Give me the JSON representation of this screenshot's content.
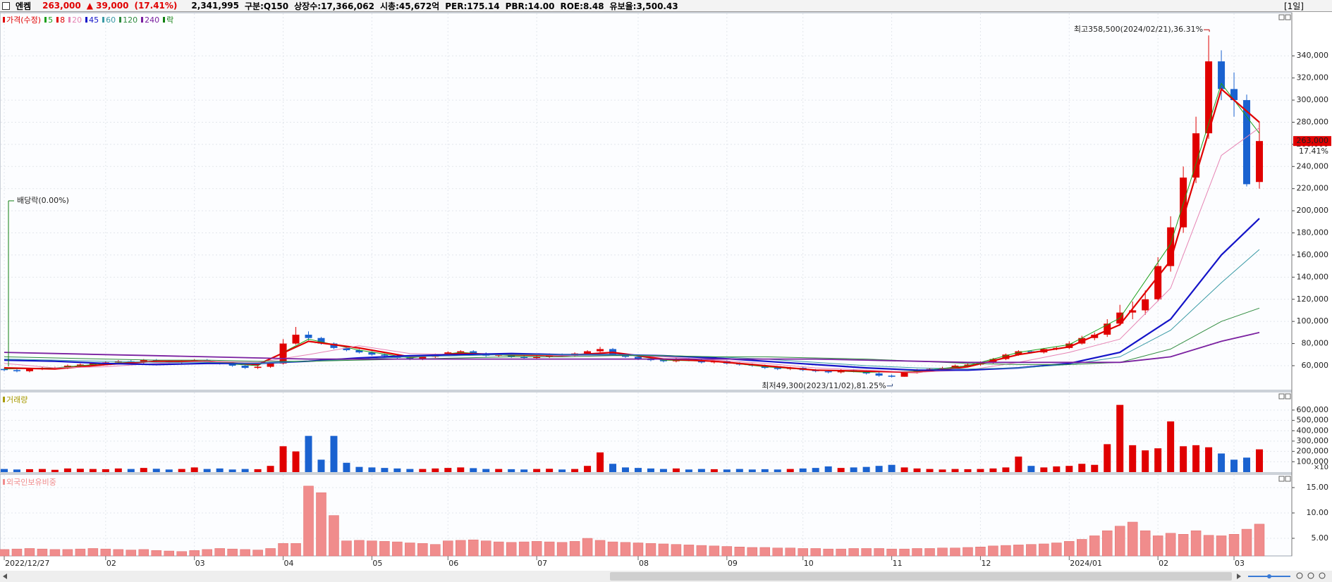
{
  "header": {
    "name": "엔켐",
    "price": "263,000",
    "change": "▲ 39,000",
    "change_rate": "(17.41%)",
    "volume": "2,341,995",
    "info": [
      "구분:Q150",
      "상장수:17,366,062",
      "시총:45,672억",
      "PER:175.14",
      "PBR:14.00",
      "ROE:8.48",
      "유보율:3,500.43"
    ],
    "period": "[1일]"
  },
  "chart_data": {
    "type": "candlestick",
    "name": "가격(수정)",
    "color_up": "#e00000",
    "color_down": "#1a62d0",
    "categories": [
      "2022/12/27",
      null,
      null,
      null,
      null,
      null,
      null,
      null,
      "02",
      null,
      null,
      null,
      null,
      null,
      null,
      "03",
      null,
      null,
      null,
      null,
      null,
      null,
      "04",
      null,
      null,
      null,
      null,
      null,
      null,
      "05",
      null,
      null,
      null,
      null,
      null,
      "06",
      null,
      null,
      null,
      null,
      null,
      null,
      "07",
      null,
      null,
      null,
      null,
      null,
      null,
      null,
      "08",
      null,
      null,
      null,
      null,
      null,
      null,
      "09",
      null,
      null,
      null,
      null,
      null,
      "10",
      null,
      null,
      null,
      null,
      null,
      null,
      "11",
      null,
      null,
      null,
      null,
      null,
      null,
      "12",
      null,
      null,
      null,
      null,
      null,
      null,
      "2024/01",
      null,
      null,
      null,
      null,
      null,
      null,
      "02",
      null,
      null,
      null,
      null,
      null,
      "03",
      null,
      null
    ],
    "open": [
      57000,
      56000,
      55000,
      57000,
      58000,
      58000,
      60000,
      61000,
      62000,
      63000,
      64000,
      63000,
      65000,
      64000,
      63000,
      64000,
      65000,
      63000,
      62000,
      60000,
      58000,
      59000,
      62000,
      80000,
      88000,
      85000,
      80000,
      76000,
      74000,
      72000,
      70000,
      69000,
      67000,
      66000,
      68000,
      70000,
      72000,
      73000,
      71000,
      69000,
      70000,
      68000,
      67000,
      68000,
      70000,
      69000,
      71000,
      73000,
      75000,
      70000,
      68000,
      66000,
      65000,
      64000,
      66000,
      65000,
      63000,
      64000,
      62000,
      61000,
      60000,
      58000,
      57000,
      58000,
      56000,
      55000,
      54000,
      56000,
      55000,
      53000,
      51000,
      50000,
      54000,
      56000,
      57000,
      58000,
      60000,
      61000,
      63000,
      66000,
      70000,
      73000,
      72000,
      75000,
      76000,
      80000,
      85000,
      88000,
      98000,
      108000,
      110000,
      120000,
      150000,
      185000,
      230000,
      270000,
      335000,
      310000,
      300000,
      226000
    ],
    "high": [
      58000,
      57000,
      58000,
      59000,
      59000,
      61000,
      62000,
      63000,
      64000,
      65000,
      65000,
      66000,
      66000,
      65000,
      65000,
      66000,
      66000,
      64000,
      63000,
      61000,
      60000,
      63000,
      84000,
      95000,
      91000,
      86000,
      81000,
      77000,
      75000,
      73000,
      71000,
      70000,
      68000,
      69000,
      71000,
      73000,
      74000,
      74000,
      72000,
      71000,
      71000,
      69000,
      69000,
      71000,
      71000,
      72000,
      74000,
      77000,
      76000,
      71000,
      69000,
      67000,
      66000,
      67000,
      67000,
      66000,
      65000,
      65000,
      63000,
      62000,
      61000,
      59000,
      59000,
      59000,
      57000,
      56000,
      57000,
      57000,
      56000,
      54000,
      52000,
      55000,
      57000,
      58000,
      59000,
      61000,
      62000,
      64000,
      67000,
      71000,
      74000,
      74000,
      76000,
      77000,
      82000,
      87000,
      90000,
      102000,
      115000,
      118000,
      128000,
      158000,
      195000,
      240000,
      285000,
      358500,
      345000,
      325000,
      305000,
      280000
    ],
    "low": [
      55000,
      54000,
      54000,
      56000,
      57000,
      57000,
      59000,
      60000,
      61000,
      62000,
      62000,
      62000,
      63000,
      62000,
      62000,
      63000,
      62000,
      61000,
      59000,
      57000,
      57000,
      58000,
      61000,
      79000,
      83000,
      79000,
      75000,
      73000,
      71000,
      69000,
      68000,
      66000,
      65000,
      65000,
      67000,
      69000,
      71000,
      70000,
      68000,
      68000,
      67000,
      66000,
      66000,
      67000,
      68000,
      68000,
      70000,
      72000,
      69000,
      67000,
      65000,
      64000,
      63000,
      63000,
      64000,
      62000,
      62000,
      61000,
      60000,
      59000,
      57000,
      56000,
      56000,
      55000,
      54000,
      53000,
      53000,
      54000,
      52000,
      50000,
      49300,
      50000,
      53000,
      55000,
      56000,
      57000,
      59000,
      60000,
      62000,
      65000,
      69000,
      71000,
      71000,
      74000,
      75000,
      79000,
      83000,
      86000,
      96000,
      102000,
      106000,
      118000,
      145000,
      180000,
      225000,
      265000,
      300000,
      285000,
      222000,
      220000
    ],
    "close": [
      56000,
      55000,
      57000,
      58000,
      58000,
      60000,
      61000,
      62000,
      63000,
      64000,
      63000,
      65000,
      64000,
      63000,
      64000,
      65000,
      63000,
      62000,
      60000,
      58000,
      59000,
      62000,
      80000,
      88000,
      85000,
      80000,
      76000,
      74000,
      72000,
      70000,
      69000,
      67000,
      66000,
      68000,
      70000,
      72000,
      73000,
      71000,
      69000,
      70000,
      68000,
      67000,
      68000,
      70000,
      69000,
      71000,
      73000,
      75000,
      70000,
      68000,
      66000,
      65000,
      64000,
      66000,
      65000,
      63000,
      64000,
      62000,
      61000,
      60000,
      58000,
      57000,
      58000,
      56000,
      55000,
      54000,
      56000,
      55000,
      53000,
      51000,
      50000,
      54000,
      56000,
      57000,
      58000,
      60000,
      61000,
      63000,
      66000,
      70000,
      73000,
      72000,
      75000,
      76000,
      80000,
      85000,
      88000,
      98000,
      108000,
      110000,
      120000,
      150000,
      185000,
      230000,
      270000,
      335000,
      310000,
      300000,
      224000,
      263000
    ],
    "ylim": [
      37700,
      379000
    ],
    "yticks": [
      {
        "value": 60000,
        "label": "60,000"
      },
      {
        "value": 80000,
        "label": "80,000"
      },
      {
        "value": 100000,
        "label": "100,000"
      },
      {
        "value": 120000,
        "label": "120,000"
      },
      {
        "value": 140000,
        "label": "140,000"
      },
      {
        "value": 160000,
        "label": "160,000"
      },
      {
        "value": 180000,
        "label": "180,000"
      },
      {
        "value": 200000,
        "label": "200,000"
      },
      {
        "value": 220000,
        "label": "220,000"
      },
      {
        "value": 240000,
        "label": "240,000"
      },
      {
        "value": 260000,
        "label": "260,000"
      },
      {
        "value": 280000,
        "label": "280,000"
      },
      {
        "value": 300000,
        "label": "300,000"
      },
      {
        "value": 320000,
        "label": "320,000"
      },
      {
        "value": 340000,
        "label": "340,000"
      }
    ],
    "grid": true,
    "moving_averages": {
      "x": [
        0,
        4,
        8,
        12,
        16,
        20,
        24,
        28,
        32,
        36,
        40,
        44,
        48,
        52,
        56,
        60,
        64,
        68,
        72,
        76,
        80,
        84,
        88,
        92,
        96,
        99
      ],
      "series": [
        {
          "name": "5",
          "color": "#1aa01a",
          "width": 1,
          "values": [
            57000,
            58000,
            62000,
            64000,
            63000,
            60000,
            84000,
            74000,
            67000,
            72000,
            69000,
            69000,
            72000,
            65000,
            64000,
            59000,
            56000,
            54000,
            55000,
            60000,
            72000,
            79000,
            103000,
            170000,
            315000,
            270000
          ]
        },
        {
          "name": "8",
          "color": "#e00000",
          "width": 2.2,
          "values": [
            58000,
            57000,
            61000,
            64000,
            64000,
            61000,
            82000,
            76000,
            68000,
            71000,
            70000,
            69000,
            72000,
            66000,
            64000,
            60000,
            56000,
            55000,
            54000,
            59000,
            70000,
            77000,
            97000,
            155000,
            310000,
            280000
          ]
        },
        {
          "name": "20",
          "color": "#e684b4",
          "width": 1,
          "values": [
            62000,
            58000,
            59000,
            62000,
            64000,
            63000,
            70000,
            78000,
            71000,
            70000,
            71000,
            69000,
            70000,
            68000,
            65000,
            62000,
            58000,
            56000,
            54000,
            56000,
            63000,
            72000,
            84000,
            130000,
            250000,
            275000
          ]
        },
        {
          "name": "45",
          "color": "#1414c8",
          "width": 2.2,
          "values": [
            65000,
            64000,
            62000,
            61000,
            62000,
            62000,
            64000,
            67000,
            69000,
            70000,
            71000,
            70000,
            70000,
            69000,
            67000,
            64000,
            61000,
            58000,
            56000,
            56000,
            58000,
            62000,
            72000,
            102000,
            160000,
            193000
          ]
        },
        {
          "name": "60",
          "color": "#3a9aa6",
          "width": 1,
          "values": [
            66000,
            65000,
            64000,
            63000,
            63000,
            62000,
            64000,
            66000,
            68000,
            69000,
            70000,
            70000,
            70000,
            69000,
            68000,
            66000,
            63000,
            60000,
            58000,
            57000,
            58000,
            61000,
            68000,
            92000,
            135000,
            165000
          ]
        },
        {
          "name": "120",
          "color": "#2e8b3e",
          "width": 1,
          "values": [
            68000,
            67000,
            66000,
            65000,
            65000,
            64000,
            64000,
            65000,
            66000,
            67000,
            68000,
            68000,
            69000,
            69000,
            68000,
            68000,
            67000,
            66000,
            64000,
            62000,
            61000,
            61000,
            63000,
            75000,
            100000,
            112000
          ]
        },
        {
          "name": "240",
          "color": "#7a20a0",
          "width": 1.8,
          "values": [
            72000,
            71000,
            70000,
            69000,
            68000,
            67000,
            66000,
            66000,
            66000,
            66000,
            66000,
            66000,
            66000,
            66000,
            66000,
            66000,
            66000,
            65000,
            64000,
            63000,
            63000,
            63000,
            63000,
            68000,
            82000,
            90000
          ]
        }
      ]
    },
    "ex_dividend": {
      "name": "락",
      "color": "#108010",
      "label": "배당락(0.00%)",
      "x": 0
    },
    "annotations": [
      {
        "text": "최고358,500(2024/02/21),36.31%",
        "x": 95,
        "value": 358500,
        "color": "#c00000"
      },
      {
        "text": "최저49,300(2023/11/02),81.25%",
        "x": 70,
        "value": 49300,
        "color": "#304a80"
      }
    ],
    "price_tag": {
      "value": 263000,
      "label": "263,000",
      "change": "17.41%"
    },
    "volume": {
      "title": "거래량",
      "title_color": "#a89a00",
      "unit": "×10",
      "values": [
        30000,
        25000,
        28000,
        30000,
        22000,
        35000,
        32000,
        30000,
        28000,
        35000,
        30000,
        40000,
        32000,
        25000,
        30000,
        45000,
        30000,
        35000,
        25000,
        30000,
        28000,
        60000,
        250000,
        200000,
        350000,
        120000,
        350000,
        90000,
        50000,
        45000,
        40000,
        35000,
        30000,
        30000,
        35000,
        40000,
        45000,
        38000,
        30000,
        30000,
        28000,
        25000,
        30000,
        32000,
        25000,
        30000,
        60000,
        190000,
        80000,
        45000,
        40000,
        35000,
        30000,
        35000,
        25000,
        30000,
        28000,
        25000,
        30000,
        25000,
        28000,
        25000,
        30000,
        35000,
        40000,
        55000,
        40000,
        45000,
        50000,
        60000,
        70000,
        45000,
        35000,
        30000,
        25000,
        30000,
        28000,
        30000,
        35000,
        45000,
        150000,
        60000,
        45000,
        55000,
        60000,
        80000,
        70000,
        270000,
        650000,
        260000,
        210000,
        230000,
        490000,
        250000,
        260000,
        240000,
        180000,
        120000,
        140000,
        220000
      ],
      "ylim": [
        0,
        777000
      ],
      "yticks": [
        {
          "value": 100000,
          "label": "100,000"
        },
        {
          "value": 200000,
          "label": "200,000"
        },
        {
          "value": 300000,
          "label": "300,000"
        },
        {
          "value": 400000,
          "label": "400,000"
        },
        {
          "value": 500000,
          "label": "500,000"
        },
        {
          "value": 600000,
          "label": "600,000"
        }
      ]
    },
    "foreign": {
      "title": "외국인보유비중",
      "color": "#f08c8c",
      "values": [
        2.8,
        2.9,
        3.0,
        2.9,
        2.8,
        2.8,
        2.9,
        3.0,
        2.9,
        2.8,
        2.7,
        2.8,
        2.6,
        2.5,
        2.4,
        2.6,
        2.8,
        3.0,
        2.9,
        2.8,
        2.7,
        3.0,
        4.0,
        4.0,
        15.3,
        14.0,
        9.5,
        4.5,
        4.6,
        4.5,
        4.4,
        4.3,
        4.1,
        4.0,
        3.8,
        4.5,
        4.6,
        4.7,
        4.5,
        4.3,
        4.2,
        4.3,
        4.4,
        4.3,
        4.2,
        4.4,
        5.0,
        4.6,
        4.3,
        4.2,
        4.1,
        4.0,
        3.9,
        3.8,
        3.7,
        3.6,
        3.5,
        3.4,
        3.3,
        3.2,
        3.2,
        3.1,
        3.1,
        3.0,
        3.0,
        2.9,
        2.9,
        3.0,
        3.0,
        3.0,
        2.9,
        2.9,
        3.0,
        3.0,
        3.1,
        3.1,
        3.2,
        3.3,
        3.5,
        3.6,
        3.7,
        3.8,
        3.9,
        4.1,
        4.4,
        4.8,
        5.5,
        6.5,
        7.4,
        8.2,
        6.5,
        5.5,
        6.0,
        5.8,
        6.5,
        5.6,
        5.5,
        5.8,
        6.8,
        7.8
      ],
      "ylim": [
        1.53,
        17.64
      ],
      "yticks": [
        {
          "value": 5,
          "label": "5.00"
        },
        {
          "value": 10,
          "label": "10.00"
        },
        {
          "value": 15,
          "label": "15.00"
        }
      ]
    }
  }
}
